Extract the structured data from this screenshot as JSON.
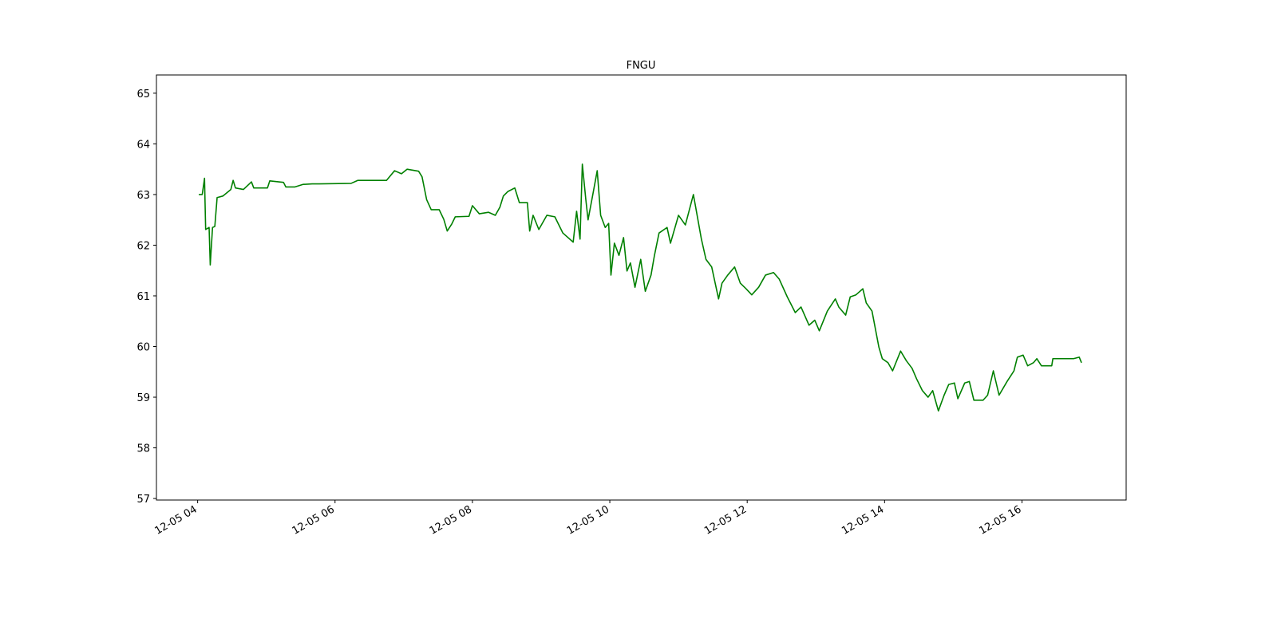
{
  "chart_data": {
    "type": "line",
    "title": "FNGU",
    "color": "#008000",
    "x": [
      "12-05 04:01",
      "12-05 04:04",
      "12-05 04:06",
      "12-05 04:07",
      "12-05 04:10",
      "12-05 04:11",
      "12-05 04:13",
      "12-05 04:15",
      "12-05 04:17",
      "12-05 04:22",
      "12-05 04:29",
      "12-05 04:31",
      "12-05 04:33",
      "12-05 04:40",
      "12-05 04:47",
      "12-05 04:49",
      "12-05 05:01",
      "12-05 05:03",
      "12-05 05:15",
      "12-05 05:17",
      "12-05 05:25",
      "12-05 05:32",
      "12-05 05:40",
      "12-05 05:46",
      "12-05 06:14",
      "12-05 06:20",
      "12-05 06:45",
      "12-05 06:52",
      "12-05 06:58",
      "12-05 07:03",
      "12-05 07:13",
      "12-05 07:16",
      "12-05 07:20",
      "12-05 07:24",
      "12-05 07:31",
      "12-05 07:35",
      "12-05 07:38",
      "12-05 07:42",
      "12-05 07:45",
      "12-05 07:57",
      "12-05 08:00",
      "12-05 08:06",
      "12-05 08:14",
      "12-05 08:20",
      "12-05 08:24",
      "12-05 08:27",
      "12-05 08:31",
      "12-05 08:37",
      "12-05 08:41",
      "12-05 08:48",
      "12-05 08:50",
      "12-05 08:53",
      "12-05 08:58",
      "12-05 09:05",
      "12-05 09:12",
      "12-05 09:19",
      "12-05 09:28",
      "12-05 09:31",
      "12-05 09:34",
      "12-05 09:36",
      "12-05 09:39",
      "12-05 09:41",
      "12-05 09:45",
      "12-05 09:49",
      "12-05 09:52",
      "12-05 09:56",
      "12-05 09:59",
      "12-05 10:01",
      "12-05 10:04",
      "12-05 10:08",
      "12-05 10:12",
      "12-05 10:15",
      "12-05 10:18",
      "12-05 10:22",
      "12-05 10:27",
      "12-05 10:31",
      "12-05 10:36",
      "12-05 10:39",
      "12-05 10:43",
      "12-05 10:50",
      "12-05 10:53",
      "12-05 11:00",
      "12-05 11:06",
      "12-05 11:13",
      "12-05 11:15",
      "12-05 11:20",
      "12-05 11:24",
      "12-05 11:29",
      "12-05 11:35",
      "12-05 11:38",
      "12-05 11:43",
      "12-05 11:49",
      "12-05 11:54",
      "12-05 11:59",
      "12-05 12:04",
      "12-05 12:10",
      "12-05 12:16",
      "12-05 12:23",
      "12-05 12:28",
      "12-05 12:35",
      "12-05 12:42",
      "12-05 12:47",
      "12-05 12:54",
      "12-05 12:59",
      "12-05 13:03",
      "12-05 13:10",
      "12-05 13:17",
      "12-05 13:20",
      "12-05 13:26",
      "12-05 13:30",
      "12-05 13:35",
      "12-05 13:41",
      "12-05 13:44",
      "12-05 13:49",
      "12-05 13:55",
      "12-05 13:58",
      "12-05 14:03",
      "12-05 14:07",
      "12-05 14:14",
      "12-05 14:19",
      "12-05 14:24",
      "12-05 14:28",
      "12-05 14:33",
      "12-05 14:38",
      "12-05 14:42",
      "12-05 14:47",
      "12-05 14:52",
      "12-05 14:56",
      "12-05 15:01",
      "12-05 15:04",
      "12-05 15:10",
      "12-05 15:14",
      "12-05 15:18",
      "12-05 15:26",
      "12-05 15:30",
      "12-05 15:35",
      "12-05 15:40",
      "12-05 15:47",
      "12-05 15:53",
      "12-05 15:56",
      "12-05 16:01",
      "12-05 16:05",
      "12-05 16:10",
      "12-05 16:13",
      "12-05 16:17",
      "12-05 16:26",
      "12-05 16:27",
      "12-05 16:45",
      "12-05 16:50",
      "12-05 16:52"
    ],
    "values": [
      63.0,
      63.0,
      63.32,
      62.31,
      62.35,
      61.61,
      62.35,
      62.37,
      62.94,
      62.97,
      63.1,
      63.28,
      63.13,
      63.1,
      63.25,
      63.13,
      63.13,
      63.27,
      63.24,
      63.15,
      63.15,
      63.2,
      63.21,
      63.21,
      63.22,
      63.28,
      63.28,
      63.47,
      63.41,
      63.5,
      63.46,
      63.35,
      62.9,
      62.7,
      62.7,
      62.51,
      62.28,
      62.42,
      62.56,
      62.57,
      62.78,
      62.62,
      62.65,
      62.59,
      62.75,
      62.97,
      63.06,
      63.13,
      62.84,
      62.84,
      62.28,
      62.59,
      62.31,
      62.59,
      62.56,
      62.24,
      62.06,
      62.67,
      62.12,
      63.6,
      62.91,
      62.5,
      62.98,
      63.47,
      62.59,
      62.35,
      62.43,
      61.41,
      62.04,
      61.8,
      62.15,
      61.49,
      61.65,
      61.17,
      61.72,
      61.09,
      61.41,
      61.8,
      62.24,
      62.35,
      62.04,
      62.59,
      62.4,
      63.0,
      62.75,
      62.12,
      61.72,
      61.57,
      60.94,
      61.25,
      61.41,
      61.57,
      61.25,
      61.14,
      61.02,
      61.17,
      61.41,
      61.46,
      61.33,
      60.98,
      60.67,
      60.78,
      60.42,
      60.52,
      60.31,
      60.7,
      60.94,
      60.78,
      60.62,
      60.98,
      61.02,
      61.14,
      60.86,
      60.7,
      59.99,
      59.76,
      59.68,
      59.52,
      59.91,
      59.72,
      59.57,
      59.36,
      59.13,
      59.0,
      59.13,
      58.73,
      59.04,
      59.25,
      59.28,
      58.97,
      59.28,
      59.31,
      58.94,
      58.94,
      59.04,
      59.52,
      59.04,
      59.31,
      59.52,
      59.79,
      59.83,
      59.62,
      59.68,
      59.76,
      59.62,
      59.62,
      59.76,
      59.76,
      59.79,
      59.68
    ],
    "xlim": [
      "12-05 03:24",
      "12-05 17:31"
    ],
    "xticks": [
      {
        "value": "12-05 04:00",
        "label": "12-05 04"
      },
      {
        "value": "12-05 06:00",
        "label": "12-05 06"
      },
      {
        "value": "12-05 08:00",
        "label": "12-05 08"
      },
      {
        "value": "12-05 10:00",
        "label": "12-05 10"
      },
      {
        "value": "12-05 12:00",
        "label": "12-05 12"
      },
      {
        "value": "12-05 14:00",
        "label": "12-05 14"
      },
      {
        "value": "12-05 16:00",
        "label": "12-05 16"
      }
    ],
    "ylim": [
      56.97,
      65.36
    ],
    "yticks": [
      57,
      58,
      59,
      60,
      61,
      62,
      63,
      64,
      65
    ]
  }
}
